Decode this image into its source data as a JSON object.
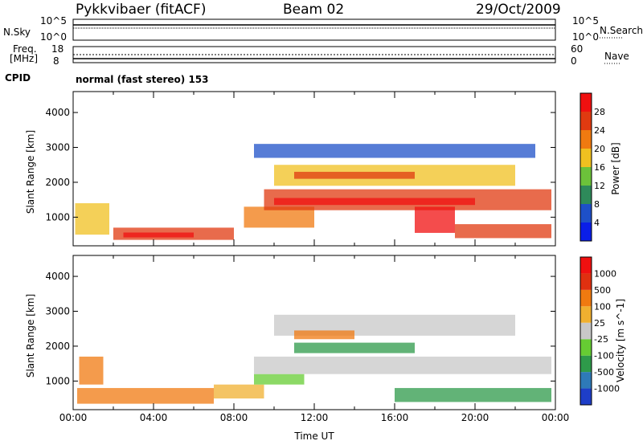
{
  "header": {
    "radar": "Pykkvibaer (fitACF)",
    "beam": "Beam 02",
    "date": "29/Oct/2009"
  },
  "nsky_panel": {
    "left_label": "N.Sky",
    "left_ticks": [
      "10^5",
      "10^0"
    ],
    "right_ticks": [
      "10^5",
      "10^0"
    ],
    "right_label": "N.Search"
  },
  "freq_panel": {
    "left_label_1": "Freq.",
    "left_label_2": "[MHz]",
    "left_ticks": [
      "18",
      "8"
    ],
    "right_ticks": [
      "60",
      "0"
    ],
    "right_label": "Nave"
  },
  "cpid": {
    "label": "CPID",
    "mode": "normal (fast stereo) 153"
  },
  "chart_data": [
    {
      "type": "heatmap",
      "name": "power",
      "ylabel": "Slant Range [km]",
      "yticks": [
        1000,
        2000,
        3000,
        4000
      ],
      "ylim": [
        180,
        4600
      ],
      "xlabel": "",
      "colorbar": {
        "label": "Power [dB]",
        "ticks": [
          "4",
          "8",
          "12",
          "16",
          "20",
          "24",
          "28"
        ],
        "colors": [
          "#0a1ee8",
          "#1e50c8",
          "#2e8a5a",
          "#6cc23a",
          "#f0c020",
          "#f07a10",
          "#e03a10",
          "#f01010"
        ]
      }
    },
    {
      "type": "heatmap",
      "name": "velocity",
      "ylabel": "Slant Range [km]",
      "yticks": [
        1000,
        2000,
        3000,
        4000
      ],
      "ylim": [
        180,
        4600
      ],
      "xlabel": "Time UT",
      "xticks": [
        "00:00",
        "04:00",
        "08:00",
        "12:00",
        "16:00",
        "20:00",
        "00:00"
      ],
      "colorbar": {
        "label": "Velocity [m s^-1]",
        "ticks": [
          "1000",
          "500",
          "100",
          "25",
          "-25",
          "-100",
          "-500",
          "-1000"
        ],
        "colors": [
          "#1e3ec8",
          "#2e7ab8",
          "#2e9a4a",
          "#66cc33",
          "#c8c8c8",
          "#f0b030",
          "#f07a10",
          "#e03010",
          "#f01010"
        ]
      }
    }
  ]
}
